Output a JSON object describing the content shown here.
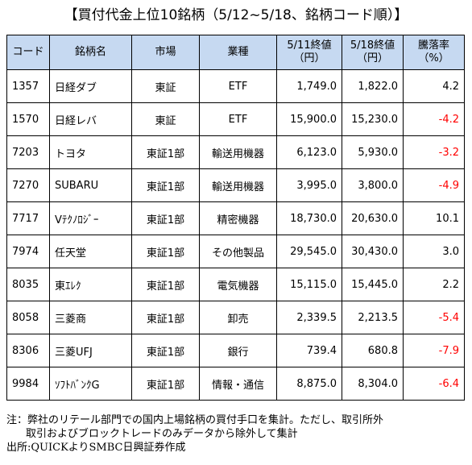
{
  "title": "【買付代金上位10銘柄（5/12~5/18、銘柄コード順）】",
  "headers": {
    "code": "コード",
    "name": "銘柄名",
    "market": "市場",
    "industry": "業種",
    "close_0511_line1": "5/11終値",
    "close_0511_line2": "（円）",
    "close_0518_line1": "5/18終値",
    "close_0518_line2": "（円）",
    "change_line1": "騰落率",
    "change_line2": "（%）"
  },
  "rows": [
    {
      "code": "1357",
      "name": "日経ダブ",
      "market": "東証",
      "industry": "ETF",
      "close_0511": "1,749.0",
      "close_0518": "1,822.0",
      "change": "4.2",
      "negative": false
    },
    {
      "code": "1570",
      "name": "日経レバ",
      "market": "東証",
      "industry": "ETF",
      "close_0511": "15,900.0",
      "close_0518": "15,230.0",
      "change": "-4.2",
      "negative": true
    },
    {
      "code": "7203",
      "name": "トヨタ",
      "market": "東証1部",
      "industry": "輸送用機器",
      "close_0511": "6,123.0",
      "close_0518": "5,930.0",
      "change": "-3.2",
      "negative": true
    },
    {
      "code": "7270",
      "name": "SUBARU",
      "market": "東証1部",
      "industry": "輸送用機器",
      "close_0511": "3,995.0",
      "close_0518": "3,800.0",
      "change": "-4.9",
      "negative": true
    },
    {
      "code": "7717",
      "name": "Vﾃｸﾉﾛｼﾞｰ",
      "market": "東証1部",
      "industry": "精密機器",
      "close_0511": "18,730.0",
      "close_0518": "20,630.0",
      "change": "10.1",
      "negative": false
    },
    {
      "code": "7974",
      "name": "任天堂",
      "market": "東証1部",
      "industry": "その他製品",
      "close_0511": "29,545.0",
      "close_0518": "30,430.0",
      "change": "3.0",
      "negative": false
    },
    {
      "code": "8035",
      "name": "東ｴﾚｸ",
      "market": "東証1部",
      "industry": "電気機器",
      "close_0511": "15,115.0",
      "close_0518": "15,445.0",
      "change": "2.2",
      "negative": false
    },
    {
      "code": "8058",
      "name": "三菱商",
      "market": "東証1部",
      "industry": "卸売",
      "close_0511": "2,339.5",
      "close_0518": "2,213.5",
      "change": "-5.4",
      "negative": true
    },
    {
      "code": "8306",
      "name": "三菱UFJ",
      "market": "東証1部",
      "industry": "銀行",
      "close_0511": "739.4",
      "close_0518": "680.8",
      "change": "-7.9",
      "negative": true
    },
    {
      "code": "9984",
      "name": "ｿﾌﾄﾊﾞﾝｸG",
      "market": "東証1部",
      "industry": "情報・通信",
      "close_0511": "8,875.0",
      "close_0518": "8,304.0",
      "change": "-6.4",
      "negative": true
    }
  ],
  "note": {
    "line1": "注：弊社のリテール部門での国内上場銘柄の買付手口を集計。ただし、取引所外",
    "line2": "取引およびブロックトレードのみデータから除外して集計",
    "source": "出所:QUICKよりSMBC日興証券作成"
  },
  "colors": {
    "header_bg": "#c6d9f1",
    "negative": "#ff0000"
  }
}
